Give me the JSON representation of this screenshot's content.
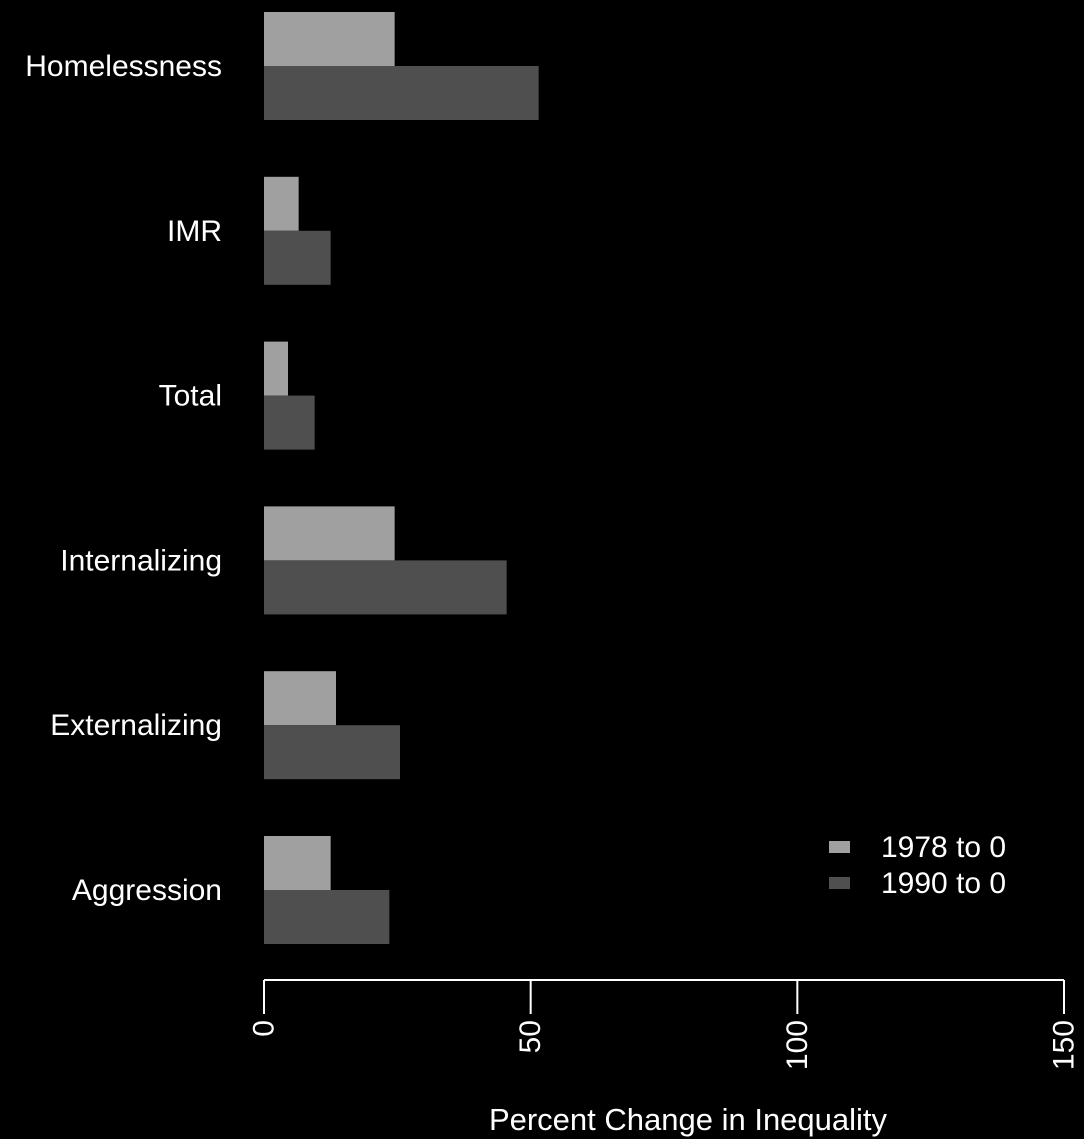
{
  "chart_data": {
    "type": "bar",
    "orientation": "horizontal",
    "categories": [
      "Homelessness",
      "IMR",
      "Total",
      "Internalizing",
      "Externalizing",
      "Aggression"
    ],
    "series": [
      {
        "name": "1978 to 0",
        "color": "#a0a0a0",
        "values": [
          24.5,
          6.5,
          4.5,
          24.5,
          13.5,
          12.5
        ]
      },
      {
        "name": "1990 to 0",
        "color": "#4f4f4f",
        "values": [
          51.5,
          12.5,
          9.5,
          45.5,
          25.5,
          23.5
        ]
      }
    ],
    "xlabel": "Percent Change in Inequality",
    "ylabel": "",
    "xlim": [
      0,
      150
    ],
    "xticks": [
      0,
      50,
      100,
      150
    ],
    "xtick_labels": [
      "0",
      "50",
      "100",
      "150"
    ],
    "grid": false,
    "legend_position": "bottom-right",
    "background": "#000000",
    "foreground": "#ffffff"
  }
}
